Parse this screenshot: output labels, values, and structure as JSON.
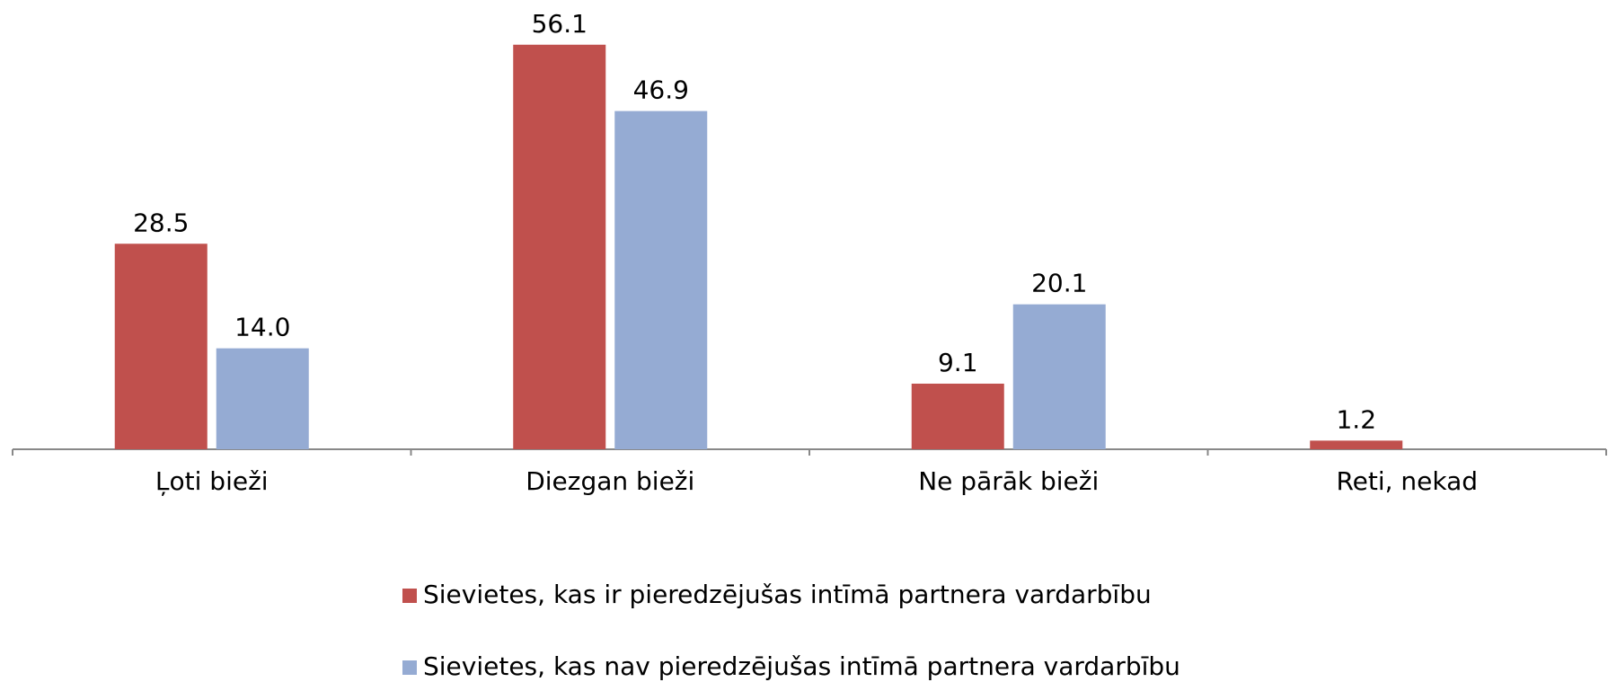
{
  "chart_data": {
    "type": "bar",
    "categories": [
      "Ļoti bieži",
      "Diezgan bieži",
      "Ne pārāk bieži",
      "Reti, nekad"
    ],
    "series": [
      {
        "name": "Sievietes, kas ir pieredzējušas intīmā partnera vardarbību",
        "color": "#c0504d",
        "values": [
          28.5,
          56.1,
          9.1,
          1.2
        ],
        "value_labels": [
          "28.5",
          "56.1",
          "9.1",
          "1.2"
        ]
      },
      {
        "name": "Sievietes, kas nav pieredzējušas intīmā partnera vardarbību",
        "color": "#95abd3",
        "values": [
          14.0,
          46.9,
          20.1,
          null
        ],
        "value_labels": [
          "14.0",
          "46.9",
          "20.1",
          null
        ]
      }
    ],
    "ylim": [
      0,
      62.3
    ],
    "legend": "bottom"
  }
}
